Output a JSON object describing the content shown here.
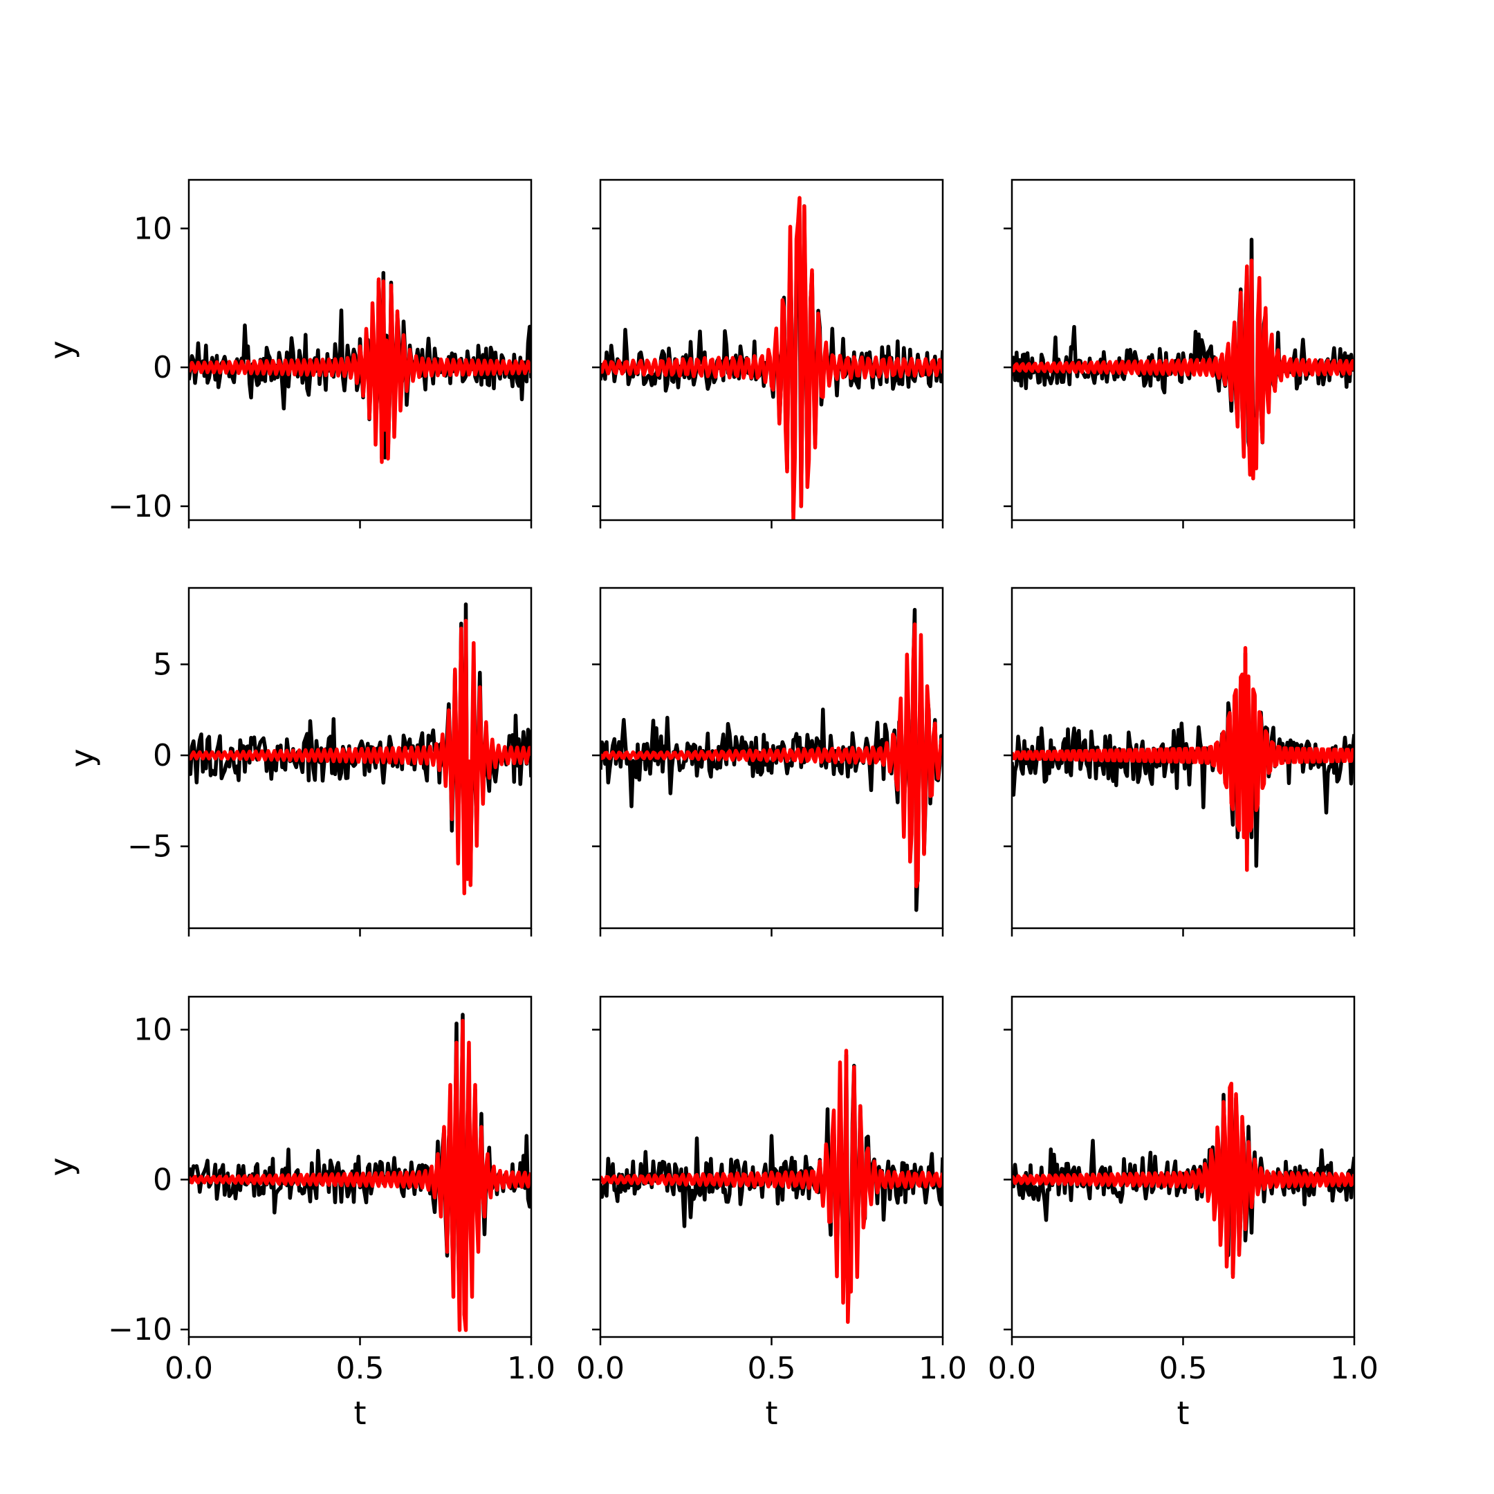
{
  "chart_data": {
    "type": "line",
    "layout": {
      "rows": 3,
      "cols": 3
    },
    "xlabel": "t",
    "ylabel": "y",
    "xlim": [
      0.0,
      1.0
    ],
    "xticks": [
      0.0,
      0.5,
      1.0
    ],
    "xtick_labels": [
      "0.0",
      "0.5",
      "1.0"
    ],
    "grid": false,
    "series_colors": {
      "signal": "#000000",
      "fit": "#ff0000"
    },
    "rows": [
      {
        "ylim": [
          -11,
          13.5
        ],
        "yticks": [
          -10,
          0,
          10
        ],
        "ytick_labels": [
          "−10",
          "0",
          "10"
        ]
      },
      {
        "ylim": [
          -9.5,
          9.2
        ],
        "yticks": [
          -5,
          0,
          5
        ],
        "ytick_labels": [
          "−5",
          "0",
          "5"
        ]
      },
      {
        "ylim": [
          -10.5,
          12.2
        ],
        "yticks": [
          -10,
          0,
          10
        ],
        "ytick_labels": [
          "−10",
          "0",
          "10"
        ]
      }
    ],
    "panels": [
      {
        "center": 0.57,
        "width": 0.05,
        "freq": 55,
        "peak": 6.5,
        "noise": 1.2,
        "envelope": 0.7,
        "red_min": -4.5,
        "red_max": 6.2,
        "black_min": -6.5,
        "black_max": 6.8
      },
      {
        "center": 0.58,
        "width": 0.05,
        "freq": 48,
        "peak": 12.0,
        "noise": 1.3,
        "envelope": 0.9,
        "red_min": -10.0,
        "red_max": 12.2,
        "black_min": -10.0,
        "black_max": 5.8
      },
      {
        "center": 0.7,
        "width": 0.05,
        "freq": 55,
        "peak": 8.0,
        "noise": 1.1,
        "envelope": 0.7,
        "red_min": -8.0,
        "red_max": 7.7,
        "black_min": -6.0,
        "black_max": 9.2
      },
      {
        "center": 0.81,
        "width": 0.045,
        "freq": 55,
        "peak": 7.2,
        "noise": 1.2,
        "envelope": 0.5,
        "red_min": -6.8,
        "red_max": 7.4,
        "black_min": -6.5,
        "black_max": 8.3
      },
      {
        "center": 0.92,
        "width": 0.045,
        "freq": 50,
        "peak": 7.0,
        "noise": 1.1,
        "envelope": 0.5,
        "red_min": -7.2,
        "red_max": 7.2,
        "black_min": -8.5,
        "black_max": 8.0
      },
      {
        "center": 0.68,
        "width": 0.05,
        "freq": 55,
        "peak": 5.8,
        "noise": 1.3,
        "envelope": 0.6,
        "red_min": -6.3,
        "red_max": 5.9,
        "black_min": -5.5,
        "black_max": 5.6
      },
      {
        "center": 0.8,
        "width": 0.05,
        "freq": 55,
        "peak": 10.5,
        "noise": 1.2,
        "envelope": 0.6,
        "red_min": -9.0,
        "red_max": 10.6,
        "black_min": -9.0,
        "black_max": 11.0
      },
      {
        "center": 0.72,
        "width": 0.05,
        "freq": 50,
        "peak": 8.5,
        "noise": 1.3,
        "envelope": 0.6,
        "red_min": -9.5,
        "red_max": 8.6,
        "black_min": -5.0,
        "black_max": 8.3
      },
      {
        "center": 0.64,
        "width": 0.05,
        "freq": 55,
        "peak": 6.3,
        "noise": 1.2,
        "envelope": 0.6,
        "red_min": -6.5,
        "red_max": 6.4,
        "black_min": -6.3,
        "black_max": 5.5
      }
    ]
  }
}
